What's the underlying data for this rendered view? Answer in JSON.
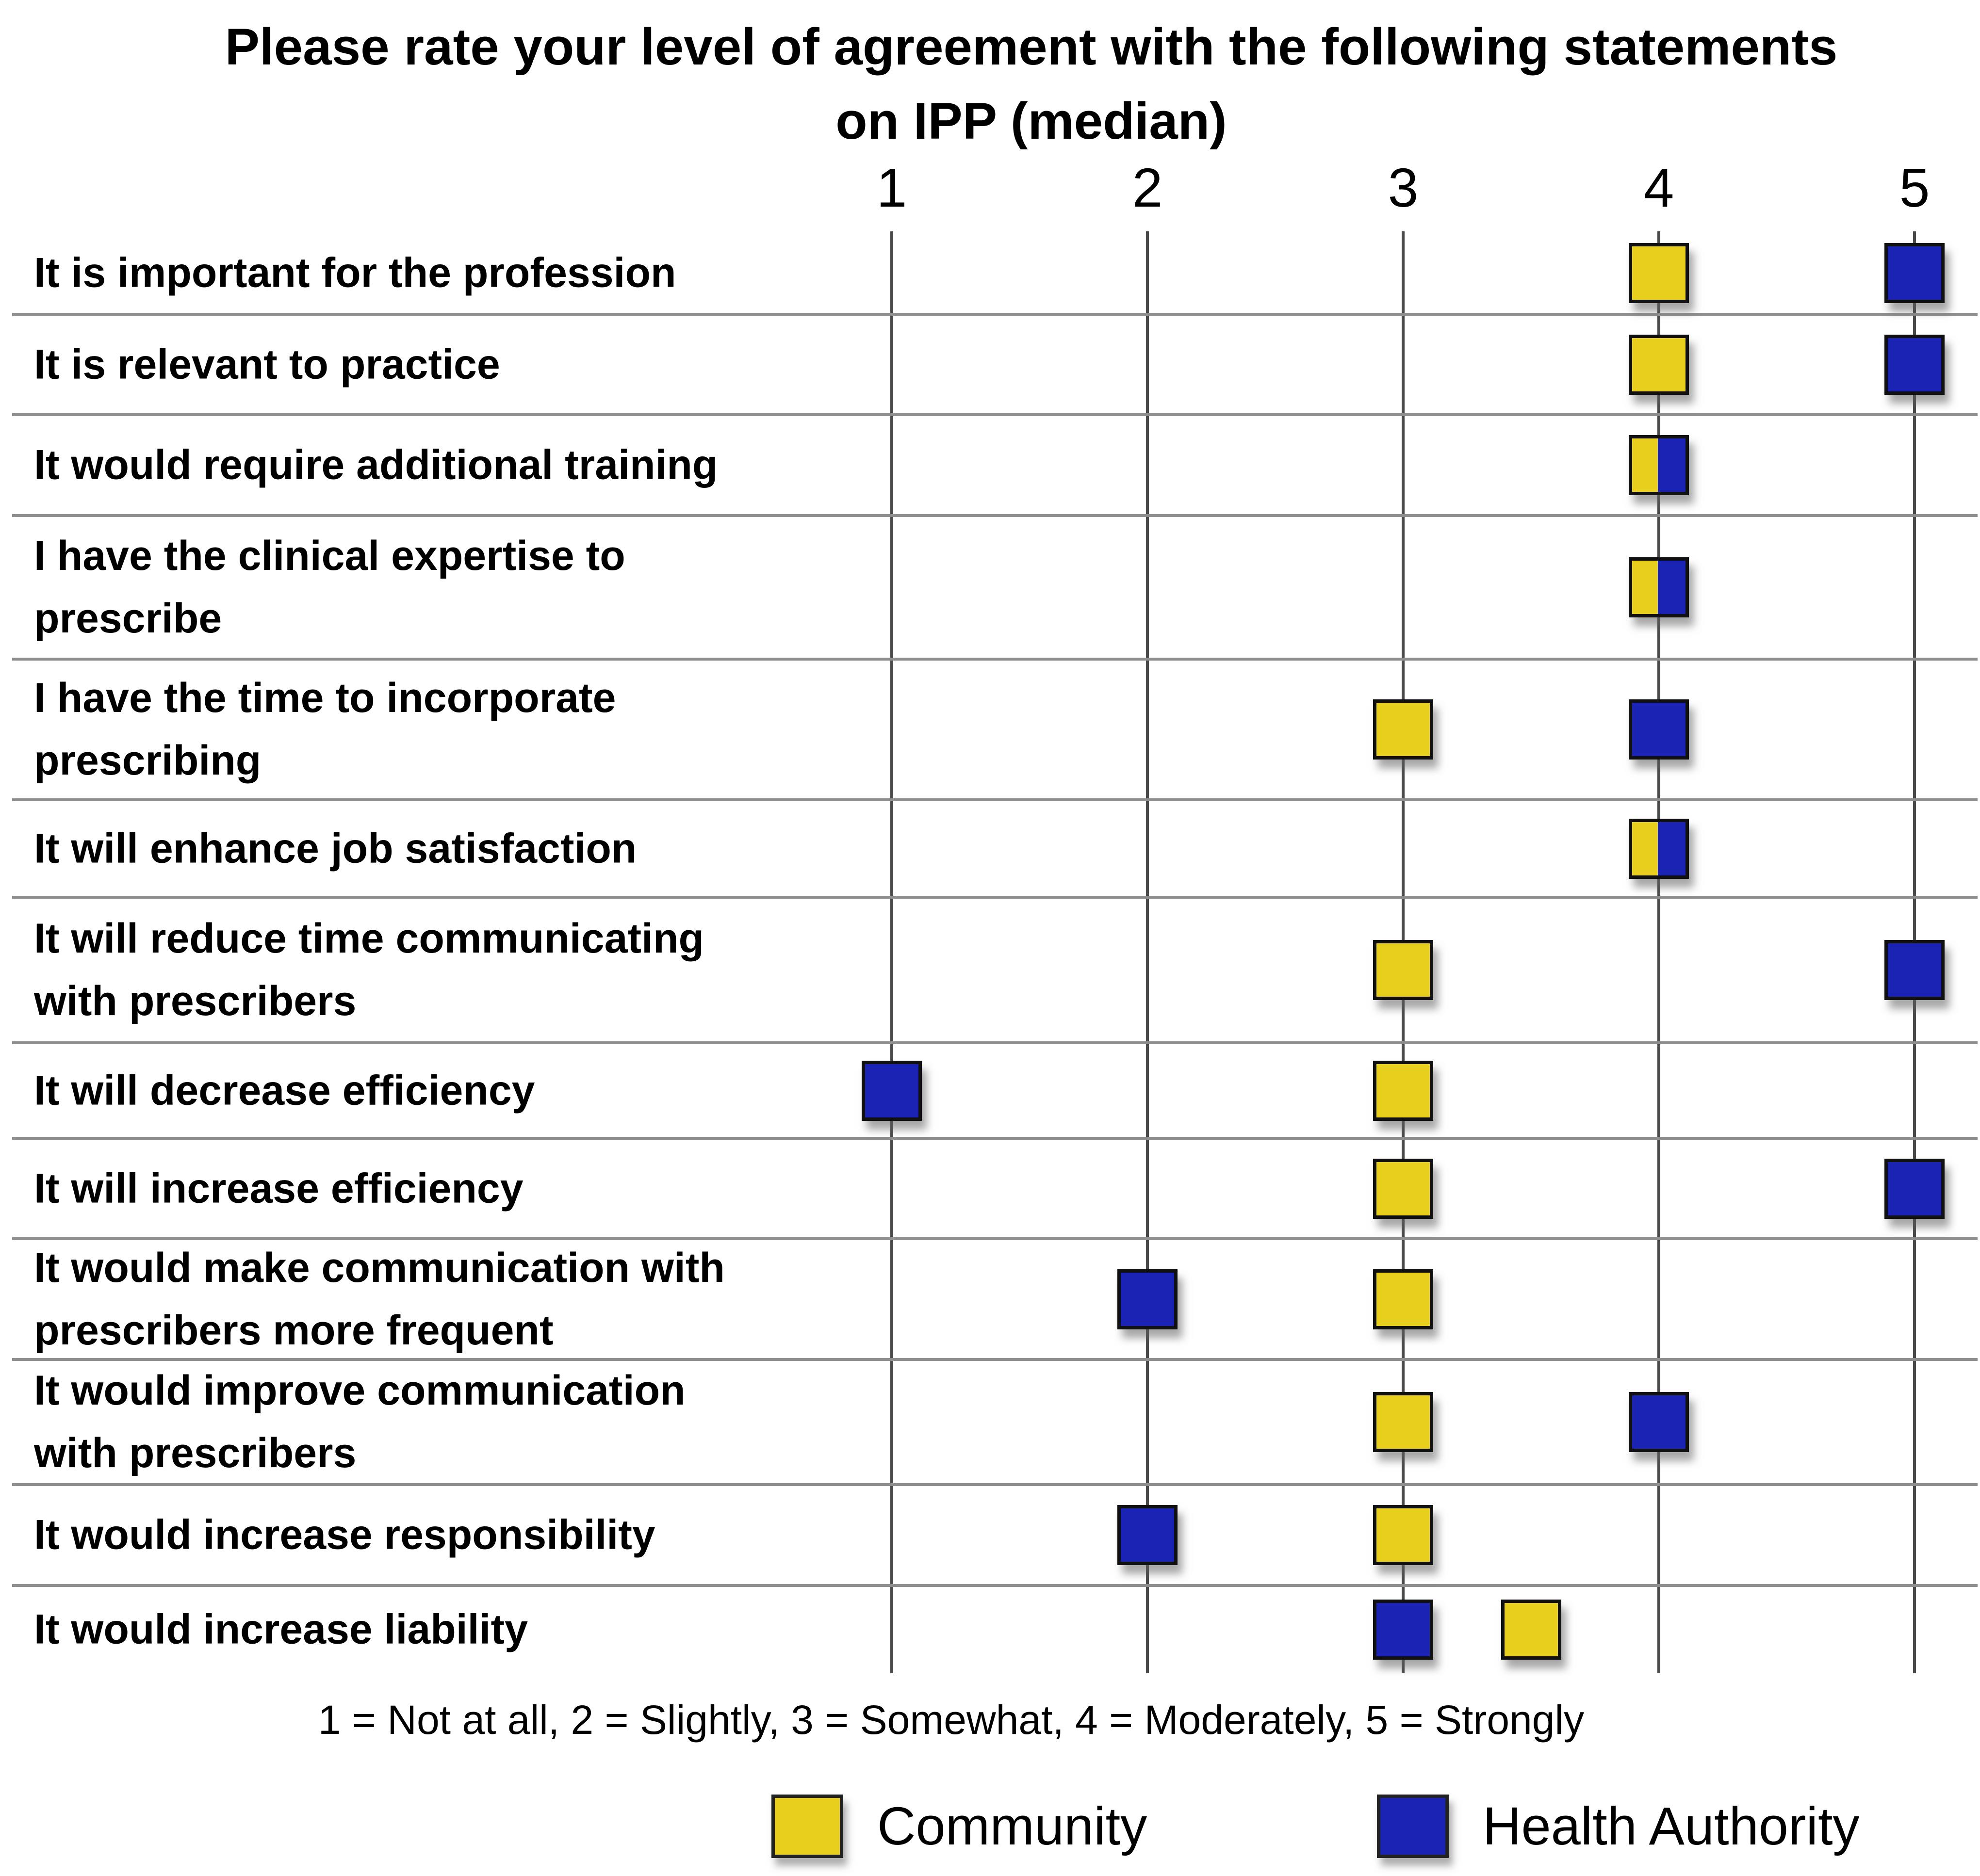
{
  "title_lines": [
    "Please rate your level of agreement with the following statements",
    "on IPP (median)"
  ],
  "caption": "1 = Not at all, 2 = Slightly, 3 = Somewhat, 4 = Moderately, 5 = Strongly",
  "colors": {
    "community": "#E8CF1D",
    "health_authority": "#1A23B3",
    "marker_border": "#111111",
    "gridline": "#4a4a4a",
    "row_separator": "#8f8f8f",
    "background": "#ffffff"
  },
  "legend": [
    {
      "label": "Community",
      "color": "#E8CF1D"
    },
    {
      "label": "Health Authority",
      "color": "#1A23B3"
    }
  ],
  "chart_data": {
    "type": "scatter",
    "title": "Please rate your level of agreement with the following statements on IPP (median)",
    "marker": "square",
    "grid": "vertical gridlines at each tick + horizontal row separators",
    "legend_position": "bottom",
    "xlim": [
      1,
      5
    ],
    "x_ticks": [
      "1",
      "2",
      "3",
      "4",
      "5"
    ],
    "x_tick_meanings": {
      "1": "Not at all",
      "2": "Slightly",
      "3": "Somewhat",
      "4": "Moderately",
      "5": "Strongly"
    },
    "categories": [
      "It is important for the profession",
      "It is relevant to practice",
      "It would require additional training",
      "I have the clinical expertise to prescribe",
      "I have the time to incorporate prescribing",
      "It will enhance job satisfaction",
      "It will reduce time communicating with prescribers",
      "It will decrease efficiency",
      "It will increase efficiency",
      "It would make communication with prescribers more frequent",
      "It would improve communication with prescribers",
      "It would increase responsibility",
      "It would increase liability"
    ],
    "category_lines": [
      [
        "It is important for the profession"
      ],
      [
        "It is relevant to practice"
      ],
      [
        "It would require additional training"
      ],
      [
        "I have the clinical expertise to",
        "prescribe"
      ],
      [
        "I have the time to incorporate",
        "prescribing"
      ],
      [
        "It will enhance job satisfaction"
      ],
      [
        "It will reduce time communicating",
        "with prescribers"
      ],
      [
        "It will decrease efficiency"
      ],
      [
        "It will increase efficiency"
      ],
      [
        "It would make communication with",
        "prescribers more frequent"
      ],
      [
        "It would improve communication",
        "with prescribers"
      ],
      [
        "It would increase responsibility"
      ],
      [
        "It would increase liability"
      ]
    ],
    "series": [
      {
        "name": "Community",
        "color": "#E8CF1D",
        "values": [
          4,
          4,
          4,
          4,
          3,
          4,
          3,
          3,
          3,
          3,
          3,
          3,
          3.5
        ]
      },
      {
        "name": "Health Authority",
        "color": "#1A23B3",
        "values": [
          5,
          5,
          4,
          4,
          4,
          4,
          5,
          1,
          5,
          2,
          4,
          2,
          3
        ]
      }
    ]
  }
}
